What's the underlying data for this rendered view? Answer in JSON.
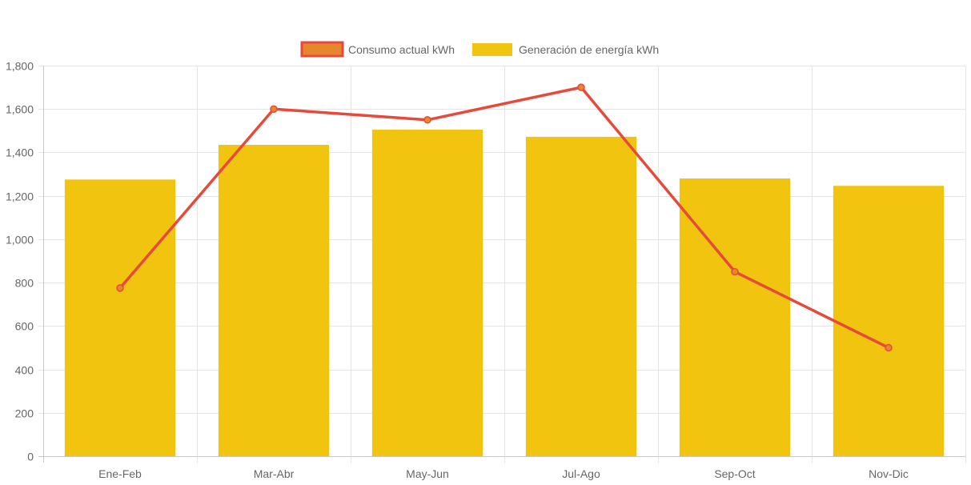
{
  "chart_data": {
    "type": "bar",
    "categories": [
      "Ene-Feb",
      "Mar-Abr",
      "May-Jun",
      "Jul-Ago",
      "Sep-Oct",
      "Nov-Dic"
    ],
    "series": [
      {
        "name": "Consumo actual kWh",
        "type": "line",
        "values": [
          775,
          1600,
          1550,
          1700,
          850,
          500
        ],
        "color": "#e64a3b",
        "fill": "#e6862d"
      },
      {
        "name": "Generación de energía kWh",
        "type": "bar",
        "values": [
          1275,
          1435,
          1505,
          1472,
          1280,
          1246
        ],
        "color": "#f0c40f"
      }
    ],
    "ylim": [
      0,
      1800
    ],
    "yticks": [
      0,
      200,
      400,
      600,
      800,
      1000,
      1200,
      1400,
      1600,
      1800
    ],
    "ytick_labels": [
      "0",
      "200",
      "400",
      "600",
      "800",
      "1,000",
      "1,200",
      "1,400",
      "1,600",
      "1,800"
    ],
    "grid": true,
    "legend": "top-center",
    "title": "",
    "xlabel": "",
    "ylabel": ""
  }
}
